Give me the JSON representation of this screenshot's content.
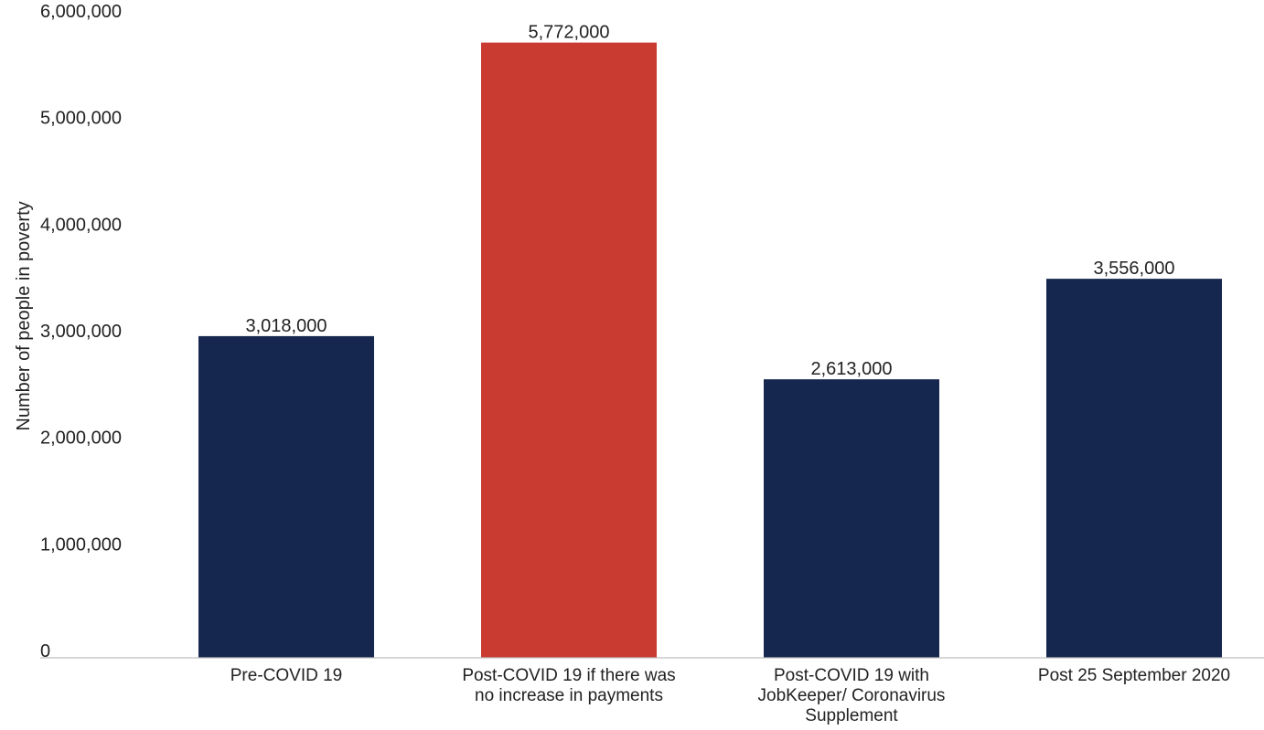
{
  "chart_data": {
    "type": "bar",
    "title": "",
    "xlabel": "",
    "ylabel": "Number of people in poverty",
    "ylim": [
      0,
      6000000
    ],
    "yticks": [
      0,
      1000000,
      2000000,
      3000000,
      4000000,
      5000000,
      6000000
    ],
    "ytick_labels": [
      "0",
      "1,000,000",
      "2,000,000",
      "3,000,000",
      "4,000,000",
      "5,000,000",
      "6,000,000"
    ],
    "grid": false,
    "legend": "none",
    "categories": [
      [
        "Pre-COVID 19"
      ],
      [
        "Post-COVID 19 if there was",
        "no increase in payments"
      ],
      [
        "Post-COVID 19 with",
        "JobKeeper/ Coronavirus",
        "Supplement"
      ],
      [
        "Post 25 September 2020"
      ]
    ],
    "values": [
      3018000,
      5772000,
      2613000,
      3556000
    ],
    "value_labels": [
      "3,018,000",
      "5,772,000",
      "2,613,000",
      "3,556,000"
    ],
    "bar_colors": [
      "#15264f",
      "#c93a31",
      "#15264f",
      "#15264f"
    ],
    "axis_color": "#bfbfbf"
  }
}
